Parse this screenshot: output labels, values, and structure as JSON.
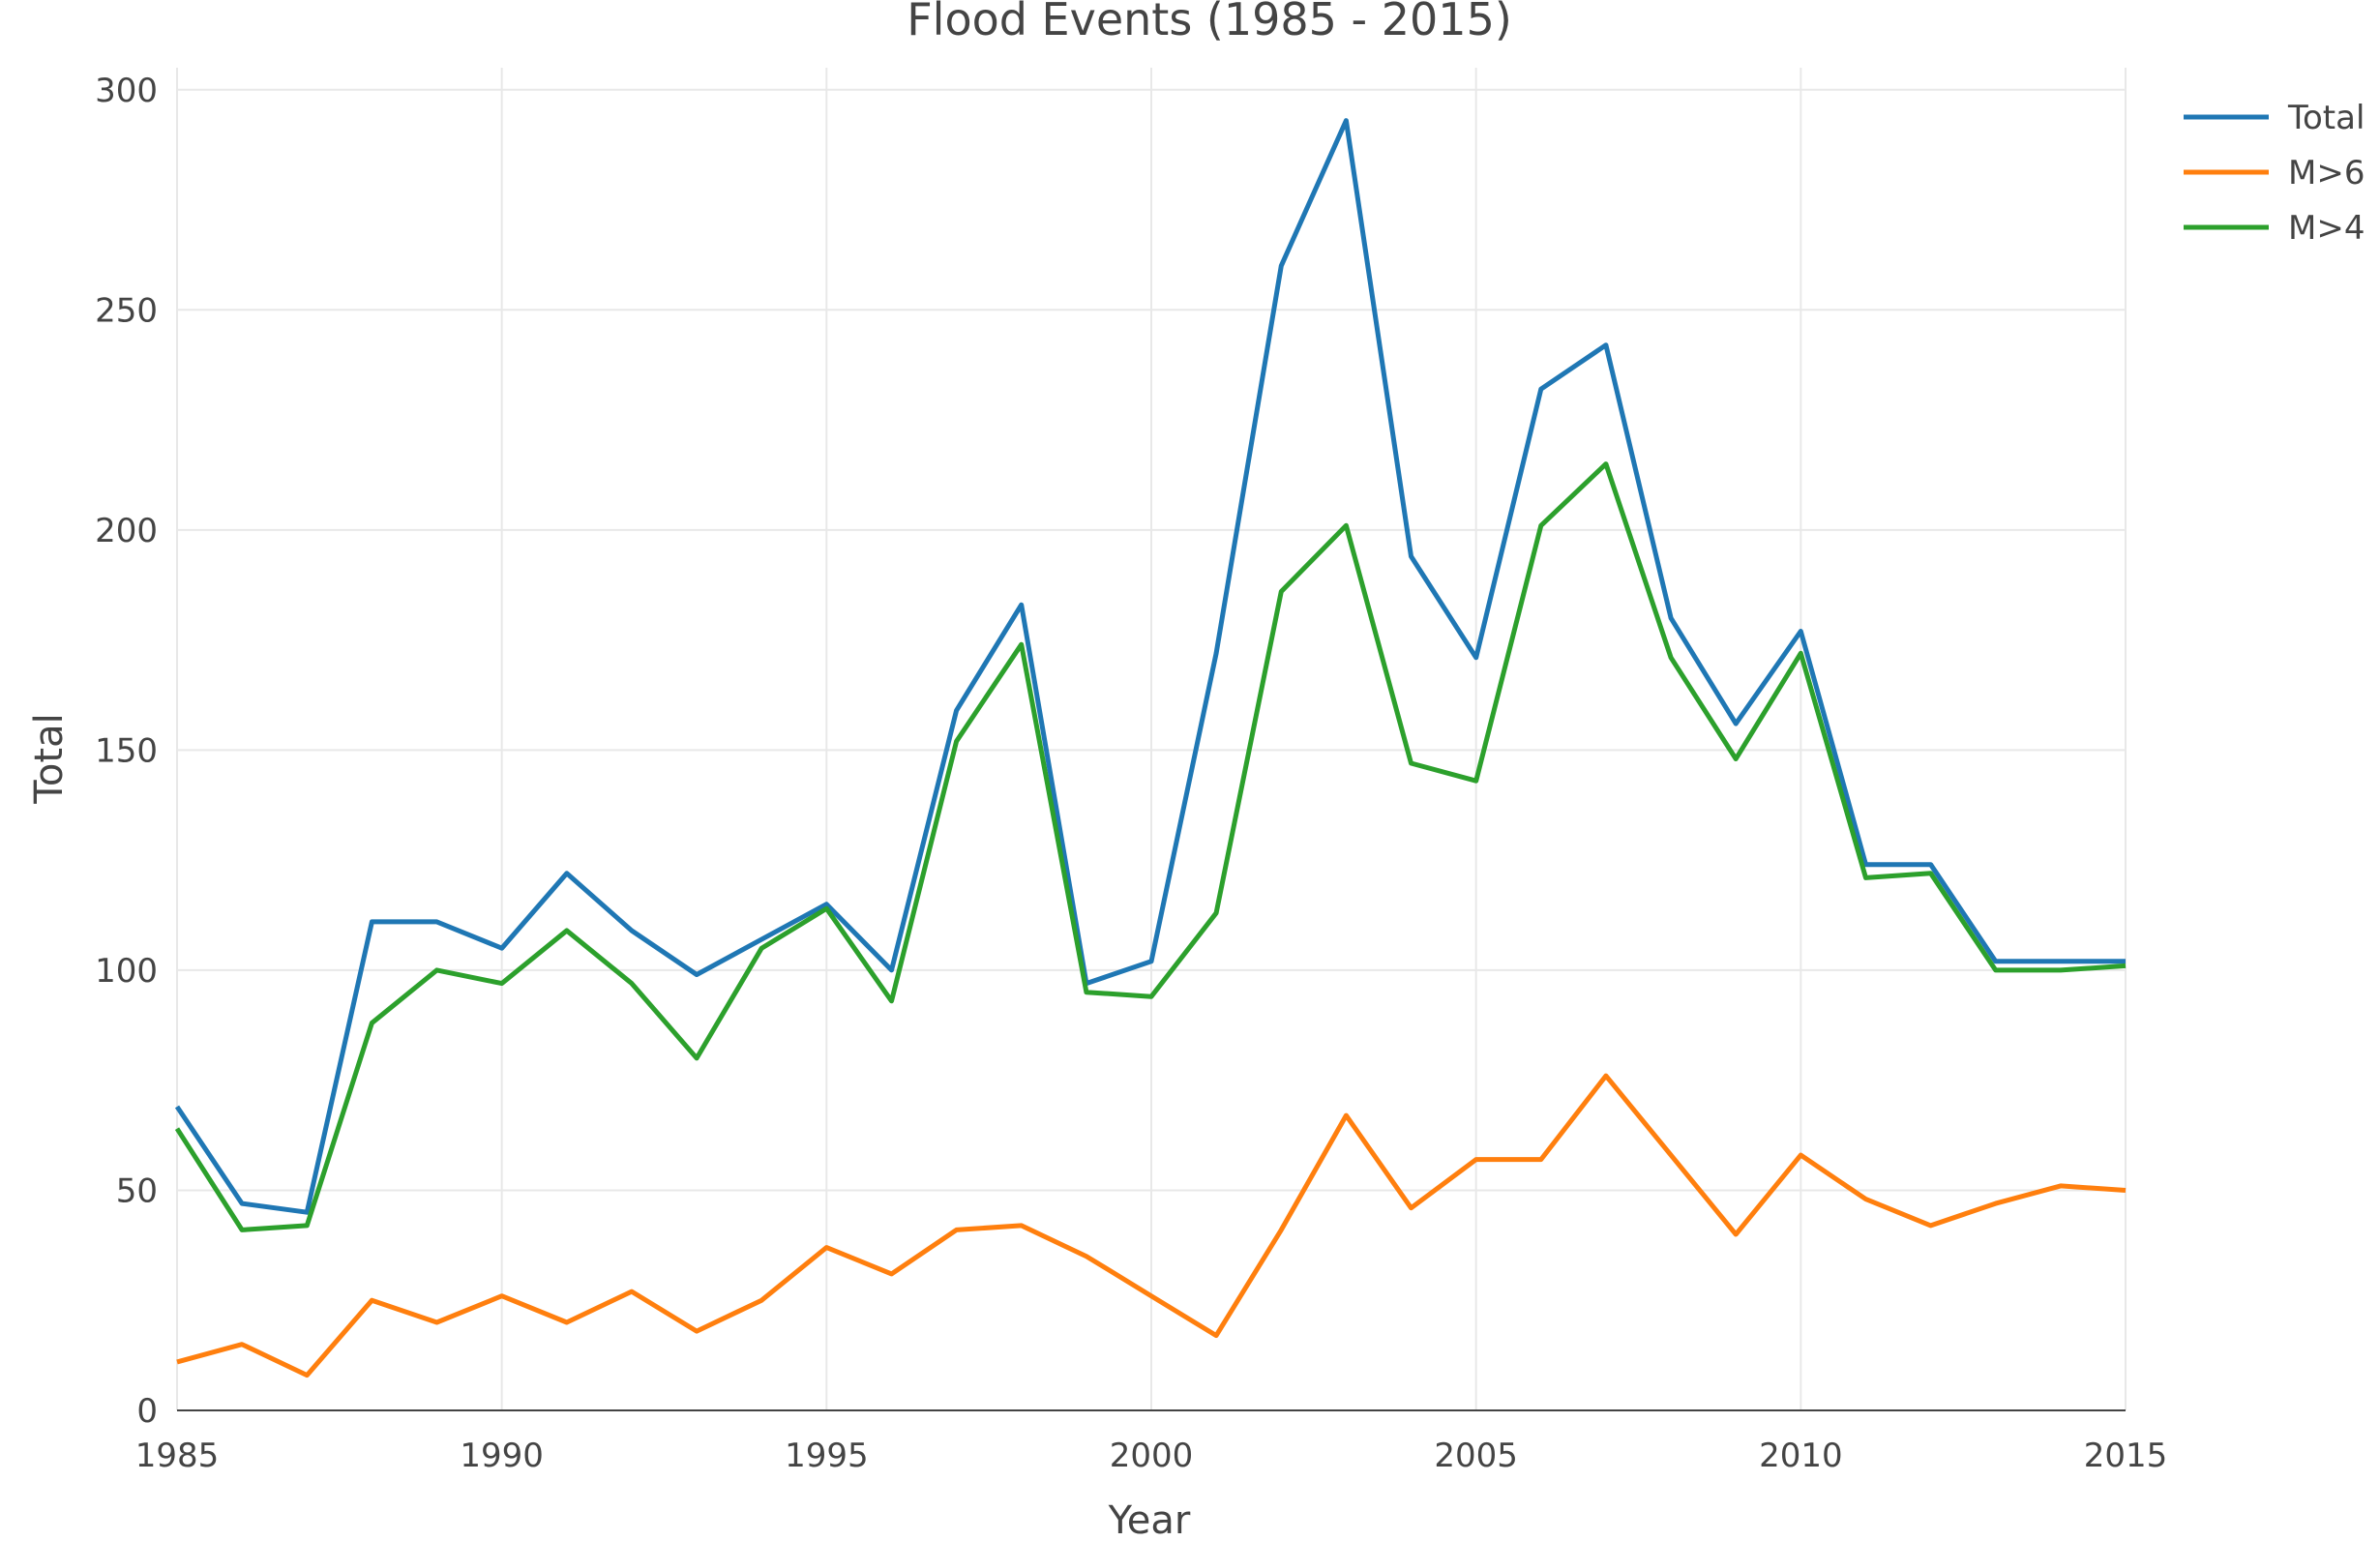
{
  "chart_data": {
    "type": "line",
    "title": "Flood Events (1985 - 2015)",
    "xlabel": "Year",
    "ylabel": "Total",
    "xlim": [
      1985,
      2015
    ],
    "ylim": [
      0,
      305
    ],
    "x_ticks": [
      1985,
      1990,
      1995,
      2000,
      2005,
      2010,
      2015
    ],
    "y_ticks": [
      0,
      50,
      100,
      150,
      200,
      250,
      300
    ],
    "grid": true,
    "legend_position": "top-right",
    "x": [
      1985,
      1986,
      1987,
      1988,
      1989,
      1990,
      1991,
      1992,
      1993,
      1994,
      1995,
      1996,
      1997,
      1998,
      1999,
      2000,
      2001,
      2002,
      2003,
      2004,
      2005,
      2006,
      2007,
      2008,
      2009,
      2010,
      2011,
      2012,
      2013,
      2014,
      2015
    ],
    "series": [
      {
        "name": "Total",
        "color": "#1f77b4",
        "values": [
          69,
          47,
          45,
          111,
          111,
          105,
          122,
          109,
          99,
          107,
          115,
          100,
          159,
          183,
          97,
          102,
          172,
          260,
          293,
          194,
          171,
          232,
          242,
          180,
          156,
          177,
          124,
          124,
          102,
          102,
          102
        ]
      },
      {
        "name": "M>6",
        "color": "#ff7f0e",
        "values": [
          11,
          15,
          8,
          25,
          20,
          26,
          20,
          27,
          18,
          25,
          37,
          31,
          41,
          42,
          35,
          26,
          17,
          41,
          67,
          46,
          57,
          57,
          76,
          58,
          40,
          58,
          48,
          42,
          47,
          51,
          50
        ]
      },
      {
        "name": "M>4",
        "color": "#2ca02c",
        "values": [
          64,
          41,
          42,
          88,
          100,
          97,
          109,
          97,
          80,
          105,
          114,
          93,
          152,
          174,
          95,
          94,
          113,
          186,
          201,
          147,
          143,
          201,
          215,
          171,
          148,
          172,
          121,
          122,
          100,
          100,
          101
        ]
      }
    ]
  }
}
